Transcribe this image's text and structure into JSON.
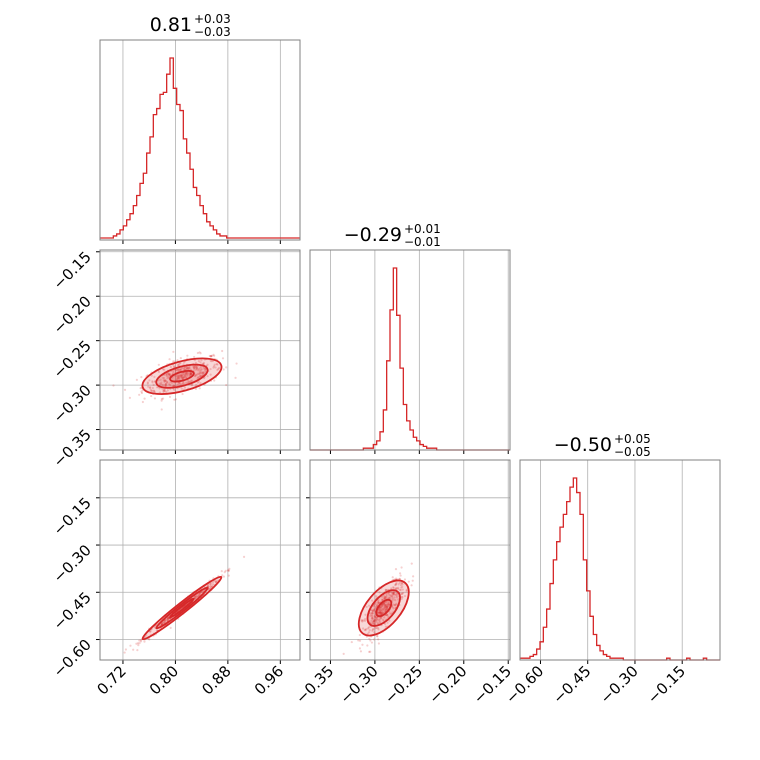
{
  "chart_data": {
    "type": "corner",
    "color": "#d62728",
    "grid": true,
    "parameters": [
      {
        "title_value": "0.81",
        "title_plus": "+0.03",
        "title_minus": "−0.03"
      },
      {
        "title_value": "−0.29",
        "title_plus": "+0.01",
        "title_minus": "−0.01"
      },
      {
        "title_value": "−0.50",
        "title_plus": "+0.05",
        "title_minus": "−0.05"
      }
    ],
    "x_ticks": [
      {
        "values": [
          0.72,
          0.8,
          0.88,
          0.96
        ],
        "labels": [
          "0.72",
          "0.80",
          "0.88",
          "0.96"
        ],
        "range": [
          0.685,
          0.99
        ]
      },
      {
        "values": [
          -0.35,
          -0.3,
          -0.25,
          -0.2,
          -0.15
        ],
        "labels": [
          "−0.35",
          "−0.30",
          "−0.25",
          "−0.20",
          "−0.15"
        ],
        "range": [
          -0.373,
          -0.148
        ]
      },
      {
        "values": [
          -0.6,
          -0.45,
          -0.3,
          -0.15
        ],
        "labels": [
          "−0.60",
          "−0.45",
          "−0.30",
          "−0.15"
        ],
        "range": [
          -0.665,
          -0.03
        ]
      }
    ],
    "y_ticks": [
      null,
      {
        "values": [
          -0.15,
          -0.2,
          -0.25,
          -0.3,
          -0.35
        ],
        "labels": [
          "−0.15",
          "−0.20",
          "−0.25",
          "−0.30",
          "−0.35"
        ],
        "range": [
          -0.373,
          -0.148
        ]
      },
      {
        "values": [
          -0.15,
          -0.3,
          -0.45,
          -0.6
        ],
        "labels": [
          "−0.15",
          "−0.30",
          "−0.45",
          "−0.60"
        ],
        "range": [
          -0.665,
          -0.03
        ]
      }
    ],
    "histograms": [
      {
        "param": 0,
        "range": [
          0.685,
          0.99
        ],
        "counts": [
          1,
          1,
          1,
          1,
          2,
          3,
          5,
          7,
          10,
          13,
          17,
          22,
          28,
          33,
          43,
          51,
          62,
          65,
          72,
          73,
          82,
          90,
          75,
          67,
          64,
          50,
          43,
          35,
          26,
          22,
          17,
          13,
          9,
          7,
          5,
          3,
          2,
          2,
          1,
          1,
          1,
          1,
          1,
          1,
          1,
          1,
          1,
          1,
          1,
          1,
          1,
          1,
          1,
          1,
          1,
          1,
          1,
          1,
          1,
          1
        ],
        "peak": 0.81
      },
      {
        "param": 1,
        "range": [
          -0.373,
          -0.148
        ],
        "counts": [
          0,
          0,
          0,
          0,
          0,
          0,
          0,
          0,
          0,
          0,
          0,
          0,
          0,
          0,
          0,
          0,
          1,
          1,
          1,
          3,
          5,
          10,
          22,
          49,
          77,
          100,
          74,
          45,
          25,
          16,
          11,
          7,
          5,
          3,
          2,
          1,
          1,
          1,
          0,
          0,
          0,
          0,
          0,
          0,
          0,
          0,
          0,
          0,
          0,
          0,
          0,
          0,
          0,
          0,
          0,
          0,
          0,
          0,
          0,
          0
        ],
        "peak": -0.29
      },
      {
        "param": 2,
        "range": [
          -0.665,
          -0.03
        ],
        "counts": [
          1,
          1,
          1,
          2,
          3,
          6,
          10,
          18,
          28,
          42,
          55,
          65,
          73,
          80,
          87,
          95,
          100,
          92,
          80,
          55,
          38,
          24,
          14,
          8,
          5,
          3,
          2,
          1,
          1,
          1,
          1,
          0,
          0,
          0,
          0,
          0,
          0,
          0,
          0,
          0,
          0,
          0,
          0,
          0,
          1,
          0,
          0,
          0,
          0,
          0,
          1,
          0,
          0,
          0,
          0,
          1,
          0,
          0,
          0,
          0
        ],
        "peak": -0.5
      }
    ],
    "scatter_pairs": [
      {
        "x_param": 0,
        "y_param": 1,
        "correlation": "positive"
      },
      {
        "x_param": 0,
        "y_param": 2,
        "correlation": "strong-positive"
      },
      {
        "x_param": 1,
        "y_param": 2,
        "correlation": "positive"
      }
    ]
  }
}
